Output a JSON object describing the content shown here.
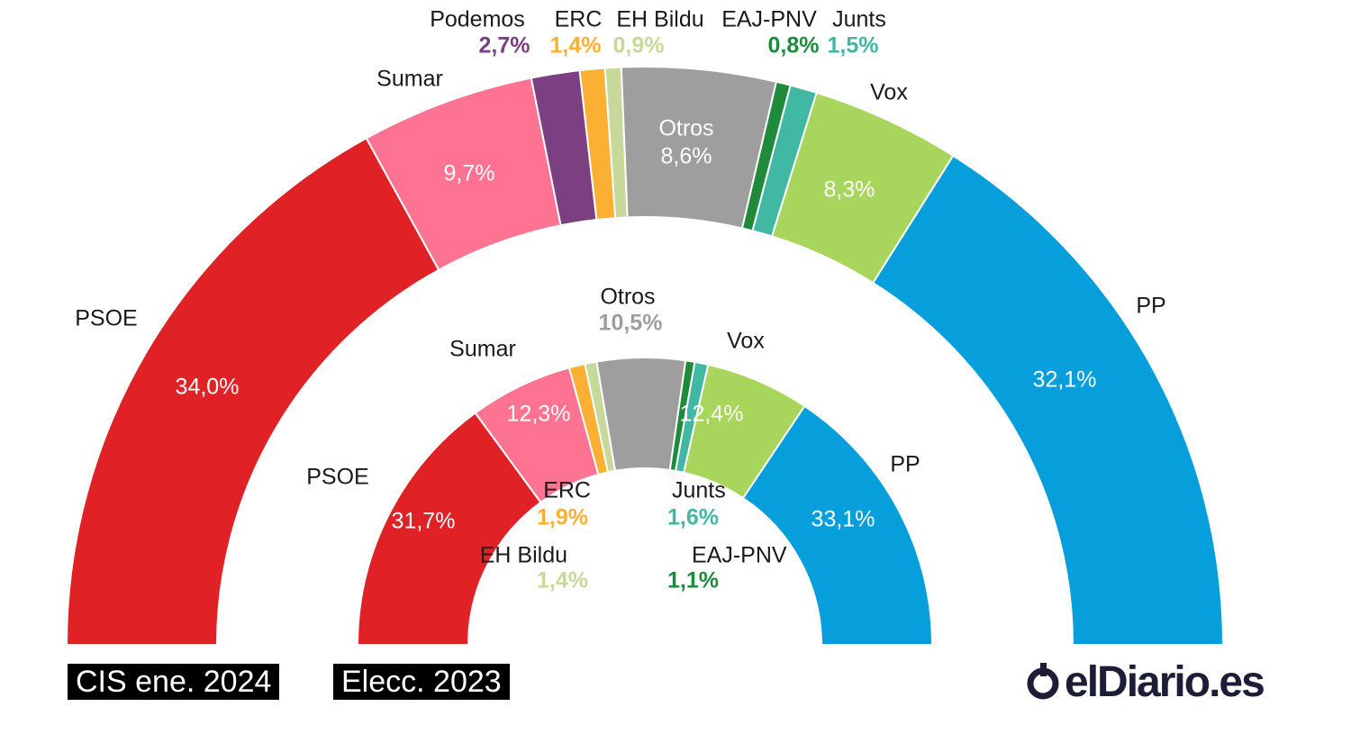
{
  "chart_data": [
    {
      "type": "pie",
      "shape": "semicircle-ring",
      "name": "CIS ene. 2024",
      "slices": [
        {
          "party": "PSOE",
          "value": 34.0,
          "label": "34,0%",
          "color": "#e02126"
        },
        {
          "party": "Sumar",
          "value": 9.7,
          "label": "9,7%",
          "color": "#ff7392"
        },
        {
          "party": "Podemos",
          "value": 2.7,
          "label": "2,7%",
          "color": "#7b3f82"
        },
        {
          "party": "ERC",
          "value": 1.4,
          "label": "1,4%",
          "color": "#fbb034"
        },
        {
          "party": "EH Bildu",
          "value": 0.9,
          "label": "0,9%",
          "color": "#c6d89a"
        },
        {
          "party": "Otros",
          "value": 8.6,
          "label": "8,6%",
          "color": "#9e9e9e"
        },
        {
          "party": "EAJ-PNV",
          "value": 0.8,
          "label": "0,8%",
          "color": "#1e8a3a"
        },
        {
          "party": "Junts",
          "value": 1.5,
          "label": "1,5%",
          "color": "#40b8a4"
        },
        {
          "party": "Vox",
          "value": 8.3,
          "label": "8,3%",
          "color": "#a8d55c"
        },
        {
          "party": "PP",
          "value": 32.1,
          "label": "32,1%",
          "color": "#069fdb"
        }
      ]
    },
    {
      "type": "pie",
      "shape": "semicircle-ring",
      "name": "Elecc. 2023",
      "slices": [
        {
          "party": "PSOE",
          "value": 31.7,
          "label": "31,7%",
          "color": "#e02126"
        },
        {
          "party": "Sumar",
          "value": 12.3,
          "label": "12,3%",
          "color": "#ff7392"
        },
        {
          "party": "ERC",
          "value": 1.9,
          "label": "1,9%",
          "color": "#fbb034"
        },
        {
          "party": "EH Bildu",
          "value": 1.4,
          "label": "1,4%",
          "color": "#c6d89a"
        },
        {
          "party": "Otros",
          "value": 10.5,
          "label": "10,5%",
          "color": "#9e9e9e"
        },
        {
          "party": "EAJ-PNV",
          "value": 1.1,
          "label": "1,1%",
          "color": "#1e8a3a"
        },
        {
          "party": "Junts",
          "value": 1.6,
          "label": "1,6%",
          "color": "#40b8a4"
        },
        {
          "party": "Vox",
          "value": 12.4,
          "label": "12,4%",
          "color": "#a8d55c"
        },
        {
          "party": "PP",
          "value": 33.1,
          "label": "33,1%",
          "color": "#069fdb"
        }
      ]
    }
  ],
  "captions": {
    "outer": "CIS ene. 2024",
    "inner": "Elecc. 2023"
  },
  "logo": {
    "text": "elDiario.es",
    "icon": "eldiario-logo-icon",
    "color": "#1d1d38"
  }
}
